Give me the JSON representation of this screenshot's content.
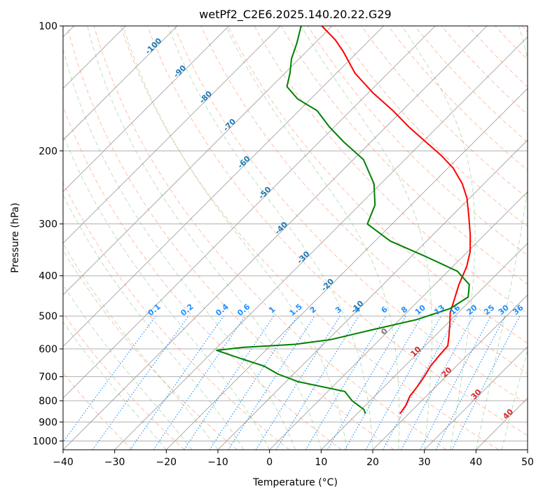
{
  "chart_data": {
    "type": "line",
    "subtype": "skew-T log-P diagram",
    "title": "wetPf2_C2E6.2025.140.20.22.G29",
    "xlabel": "Temperature (°C)",
    "ylabel": "Pressure (hPa)",
    "xlim": [
      -40,
      50
    ],
    "ylim": [
      1050,
      100
    ],
    "y_scale": "log",
    "grid": true,
    "x_ticks": [
      -40,
      -30,
      -20,
      -10,
      0,
      10,
      20,
      30,
      40,
      50
    ],
    "y_ticks": [
      100,
      200,
      300,
      400,
      500,
      600,
      700,
      800,
      900,
      1000
    ],
    "colors": {
      "temperature": "#ff0000",
      "dewpoint": "#008000",
      "isotherm": "#999999",
      "dry_adiabat": "#ff7f50",
      "moist_adiabat": "#2ca02c",
      "mixing_ratio": "#1e90ff",
      "frost_point_label": "#1f77b4",
      "temp_label": "#d62728"
    },
    "series": [
      {
        "points": [
          {
            "p": 860,
            "t": 18.3
          },
          {
            "p": 820,
            "t": 17.8
          },
          {
            "p": 780,
            "t": 16.8
          },
          {
            "p": 740,
            "t": 16.4
          },
          {
            "p": 700,
            "t": 15.8
          },
          {
            "p": 660,
            "t": 15.0
          },
          {
            "p": 620,
            "t": 14.6
          },
          {
            "p": 590,
            "t": 14.4
          },
          {
            "p": 560,
            "t": 12.8
          },
          {
            "p": 520,
            "t": 10.4
          },
          {
            "p": 490,
            "t": 8.4
          },
          {
            "p": 460,
            "t": 6.9
          },
          {
            "p": 420,
            "t": 4.7
          },
          {
            "p": 380,
            "t": 2.7
          },
          {
            "p": 350,
            "t": 0.5
          },
          {
            "p": 320,
            "t": -2.6
          },
          {
            "p": 290,
            "t": -6.3
          },
          {
            "p": 260,
            "t": -10.5
          },
          {
            "p": 240,
            "t": -14.2
          },
          {
            "p": 220,
            "t": -19.0
          },
          {
            "p": 205,
            "t": -23.8
          },
          {
            "p": 190,
            "t": -29.5
          },
          {
            "p": 175,
            "t": -35.6
          },
          {
            "p": 160,
            "t": -41.8
          },
          {
            "p": 145,
            "t": -49.1
          },
          {
            "p": 130,
            "t": -56.4
          },
          {
            "p": 115,
            "t": -63.0
          },
          {
            "p": 108,
            "t": -66.7
          },
          {
            "p": 100,
            "t": -72.0
          }
        ]
      },
      {
        "points": [
          {
            "p": 860,
            "t": 11.6
          },
          {
            "p": 840,
            "t": 10.5
          },
          {
            "p": 800,
            "t": 6.5
          },
          {
            "p": 760,
            "t": 3.3
          },
          {
            "p": 720,
            "t": -7.6
          },
          {
            "p": 690,
            "t": -13.0
          },
          {
            "p": 660,
            "t": -17.3
          },
          {
            "p": 630,
            "t": -23.9
          },
          {
            "p": 605,
            "t": -29.5
          },
          {
            "p": 595,
            "t": -25.0
          },
          {
            "p": 585,
            "t": -15.5
          },
          {
            "p": 570,
            "t": -9.5
          },
          {
            "p": 540,
            "t": -3.4
          },
          {
            "p": 510,
            "t": 3.3
          },
          {
            "p": 480,
            "t": 7.6
          },
          {
            "p": 450,
            "t": 8.9
          },
          {
            "p": 420,
            "t": 6.7
          },
          {
            "p": 390,
            "t": 1.8
          },
          {
            "p": 360,
            "t": -7.0
          },
          {
            "p": 330,
            "t": -17.0
          },
          {
            "p": 300,
            "t": -24.8
          },
          {
            "p": 270,
            "t": -27.0
          },
          {
            "p": 240,
            "t": -31.3
          },
          {
            "p": 210,
            "t": -38.0
          },
          {
            "p": 190,
            "t": -45.4
          },
          {
            "p": 175,
            "t": -51.0
          },
          {
            "p": 160,
            "t": -56.5
          },
          {
            "p": 150,
            "t": -62.5
          },
          {
            "p": 140,
            "t": -67.0
          },
          {
            "p": 130,
            "t": -69.0
          },
          {
            "p": 120,
            "t": -71.5
          },
          {
            "p": 110,
            "t": -73.5
          },
          {
            "p": 100,
            "t": -76.0
          }
        ]
      }
    ],
    "isotherm_label_values": [
      -100,
      -90,
      -80,
      -70,
      -60,
      -50,
      -40,
      -30,
      -20,
      -10,
      0,
      10,
      20,
      30,
      40
    ],
    "mixing_ratio_labels": [
      "0.1",
      "0.2",
      "0.4",
      "0.6",
      "1",
      "1.5",
      "2",
      "3",
      "4",
      "6",
      "8",
      "10",
      "13",
      "16",
      "20",
      "25",
      "30",
      "36"
    ],
    "mixing_ratio_values": [
      0.1,
      0.2,
      0.4,
      0.6,
      1,
      1.5,
      2,
      3,
      4,
      6,
      8,
      10,
      13,
      16,
      20,
      25,
      30,
      36
    ]
  }
}
